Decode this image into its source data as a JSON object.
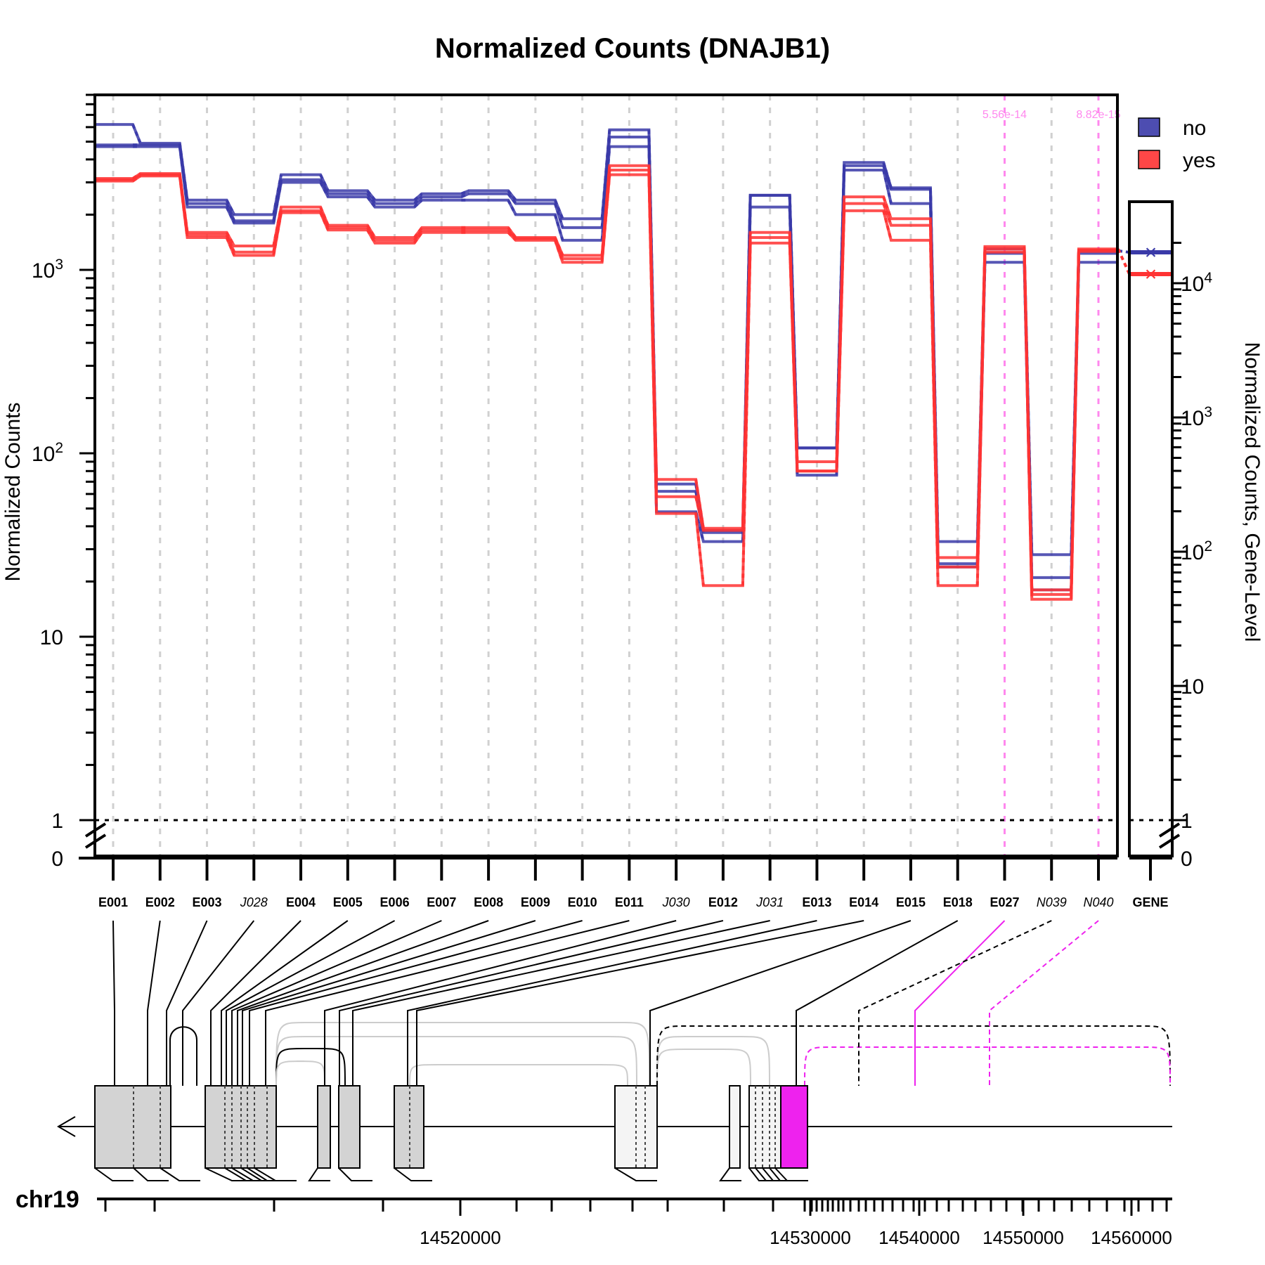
{
  "chart_data": {
    "type": "line",
    "title": "Normalized Counts (DNAJB1)",
    "ylabel": "Normalized Counts",
    "ylabel_right": "Normalized Counts, Gene-Level",
    "yscale": "log",
    "ylim": [
      1,
      9000
    ],
    "ylim_gene": [
      1,
      25000
    ],
    "y_ticks": [
      {
        "value": 1000,
        "base": "10",
        "exp": "3"
      },
      {
        "value": 100,
        "base": "10",
        "exp": "2"
      },
      {
        "value": 10,
        "base": "10",
        "exp": ""
      },
      {
        "value": 1,
        "base": "1",
        "exp": ""
      }
    ],
    "y_zero_label": "0",
    "y_ticks_gene": [
      {
        "value": 10000,
        "base": "10",
        "exp": "4"
      },
      {
        "value": 1000,
        "base": "10",
        "exp": "3"
      },
      {
        "value": 100,
        "base": "10",
        "exp": "2"
      },
      {
        "value": 10,
        "base": "10",
        "exp": ""
      },
      {
        "value": 1,
        "base": "1",
        "exp": ""
      }
    ],
    "features": [
      {
        "id": "E001",
        "italic": false
      },
      {
        "id": "E002",
        "italic": false
      },
      {
        "id": "E003",
        "italic": false
      },
      {
        "id": "J028",
        "italic": true
      },
      {
        "id": "E004",
        "italic": false
      },
      {
        "id": "E005",
        "italic": false
      },
      {
        "id": "E006",
        "italic": false
      },
      {
        "id": "E007",
        "italic": false
      },
      {
        "id": "E008",
        "italic": false
      },
      {
        "id": "E009",
        "italic": false
      },
      {
        "id": "E010",
        "italic": false
      },
      {
        "id": "E011",
        "italic": false
      },
      {
        "id": "J030",
        "italic": true
      },
      {
        "id": "E012",
        "italic": false
      },
      {
        "id": "J031",
        "italic": true
      },
      {
        "id": "E013",
        "italic": false
      },
      {
        "id": "E014",
        "italic": false
      },
      {
        "id": "E015",
        "italic": false
      },
      {
        "id": "E018",
        "italic": false
      },
      {
        "id": "E027",
        "italic": false
      },
      {
        "id": "N039",
        "italic": true
      },
      {
        "id": "N040",
        "italic": true
      }
    ],
    "gene_label": "GENE",
    "significant": [
      {
        "feature": "E027",
        "pvalue": "5.56e-14"
      },
      {
        "feature": "N039",
        "pvalue": ""
      },
      {
        "feature": "N040",
        "pvalue": "8.82e-15"
      }
    ],
    "series": [
      {
        "name": "no",
        "color": "#3a3aa8",
        "samples": [
          [
            6200,
            4900,
            2400,
            2000,
            3300,
            2700,
            2400,
            2600,
            2700,
            2400,
            1900,
            5800,
            68,
            38,
            2550,
            107,
            3850,
            2800,
            33,
            1300,
            28,
            1270
          ],
          [
            4800,
            4800,
            2300,
            1850,
            3100,
            2600,
            2300,
            2500,
            2600,
            2300,
            1700,
            5300,
            62,
            37,
            2550,
            107,
            3700,
            2750,
            25,
            1230,
            21,
            1230
          ],
          [
            4700,
            4700,
            2200,
            1800,
            3000,
            2500,
            2200,
            2400,
            2400,
            2000,
            1450,
            4700,
            48,
            33,
            2200,
            76,
            3500,
            2300,
            24,
            1100,
            18,
            1100
          ]
        ]
      },
      {
        "name": "yes",
        "color": "#ff3333",
        "samples": [
          [
            3150,
            3350,
            1600,
            1350,
            2200,
            1750,
            1500,
            1700,
            1700,
            1500,
            1200,
            3700,
            72,
            39,
            1600,
            90,
            2500,
            1900,
            27,
            1340,
            18,
            1300
          ],
          [
            3100,
            3300,
            1550,
            1250,
            2100,
            1700,
            1450,
            1650,
            1650,
            1480,
            1150,
            3500,
            58,
            38,
            1500,
            80,
            2300,
            1750,
            24,
            1300,
            17,
            1280
          ],
          [
            3050,
            3250,
            1500,
            1200,
            2050,
            1650,
            1400,
            1600,
            1600,
            1450,
            1100,
            3300,
            47,
            19,
            1400,
            80,
            2100,
            1450,
            19,
            1250,
            16,
            1260
          ]
        ]
      }
    ],
    "gene_level": [
      {
        "name": "no",
        "value": 17000
      },
      {
        "name": "yes",
        "value": 11700
      }
    ],
    "legend": {
      "position": "top-right",
      "entries": [
        "no",
        "yes"
      ]
    },
    "genome": {
      "chromosome": "chr19",
      "strand": "-",
      "tick_labels": [
        "14520000",
        "14530000",
        "14540000",
        "14550000",
        "14560000"
      ],
      "exon_segments": [
        {
          "feature": "E001",
          "start": 14506000,
          "end": 14509600
        },
        {
          "feature": "E002",
          "start": 14509600,
          "end": 14512000
        },
        {
          "feature": "E003",
          "start": 14512000,
          "end": 14513300
        },
        {
          "feature": "E004",
          "start": 14513300,
          "end": 14514200
        },
        {
          "feature": "E005",
          "start": 14514200,
          "end": 14514500
        },
        {
          "feature": "E006",
          "start": 14514500,
          "end": 14514800
        },
        {
          "feature": "E007",
          "start": 14514800,
          "end": 14515000
        },
        {
          "feature": "E008",
          "start": 14515000,
          "end": 14515200
        },
        {
          "feature": "E009",
          "start": 14515200,
          "end": 14515700
        },
        {
          "feature": "E010",
          "start": 14515700,
          "end": 14516300
        },
        {
          "feature": "E011",
          "start": 14517400,
          "end": 14517900
        },
        {
          "feature": "E012",
          "start": 14518200,
          "end": 14518900
        },
        {
          "feature": "E013",
          "start": 14520500,
          "end": 14521800
        },
        {
          "feature": "E014",
          "start": 14522000,
          "end": 14522600
        },
        {
          "feature": "E015",
          "start": 14525600,
          "end": 14526300
        },
        {
          "feature": "E018",
          "start": 14526300,
          "end": 14527400
        },
        {
          "feature": "E027",
          "start": 14530000,
          "end": 14534300
        }
      ]
    }
  }
}
